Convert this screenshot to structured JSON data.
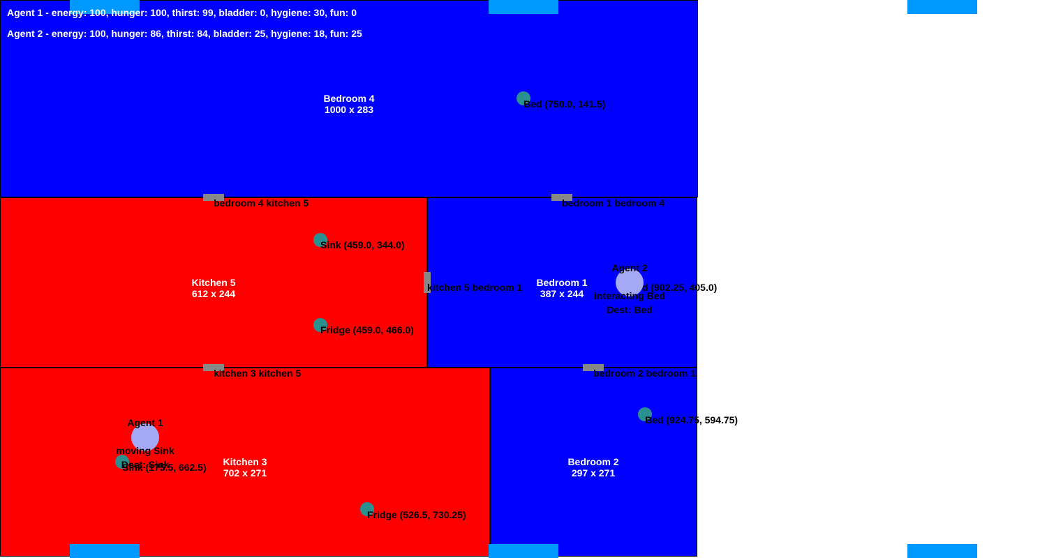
{
  "colors": {
    "kitchen": "#ff0000",
    "bedroom": "#0000ff",
    "object": "#2a9090",
    "agent": "#a5a8f5",
    "door": "#888888",
    "spawn": "#0099ff"
  },
  "hud": {
    "agent1": "Agent 1 - energy: 100, hunger: 100, thirst: 99, bladder: 0, hygiene: 30, fun: 0",
    "agent2": "Agent 2 - energy: 100, hunger: 86, thirst: 84, bladder: 25, hygiene: 18, fun: 25"
  },
  "rooms": {
    "bedroom4": {
      "name": "Bedroom 4",
      "size": "1000 x 283"
    },
    "kitchen5": {
      "name": "Kitchen 5",
      "size": "612 x 244"
    },
    "bedroom1": {
      "name": "Bedroom 1",
      "size": "387 x 244"
    },
    "kitchen3": {
      "name": "Kitchen 3",
      "size": "702 x 271"
    },
    "bedroom2": {
      "name": "Bedroom 2",
      "size": "297 x 271"
    }
  },
  "objects": {
    "bed4": "Bed (750.0, 141.5)",
    "sink5": "Sink (459.0, 344.0)",
    "fridge5": "Fridge (459.0, 466.0)",
    "bed1": "Bed (902.25, 405.0)",
    "bed2": "Bed (924.75, 594.75)",
    "sink3": "Sink (175.5, 662.5)",
    "fridge3": "Fridge (526.5, 730.25)"
  },
  "doors": {
    "d1": "bedroom 4 kitchen 5",
    "d2": "bedroom 1 bedroom 4",
    "d3": "kitchen 5 bedroom 1",
    "d4": "kitchen 3 kitchen 5",
    "d5": "bedroom 2 bedroom 1"
  },
  "agents": {
    "agent1": {
      "name": "Agent 1",
      "status": "moving Sink",
      "dest": "Dest: Sink"
    },
    "agent2": {
      "name": "Agent 2",
      "status": "interacting Bed",
      "dest": "Dest: Bed"
    }
  }
}
